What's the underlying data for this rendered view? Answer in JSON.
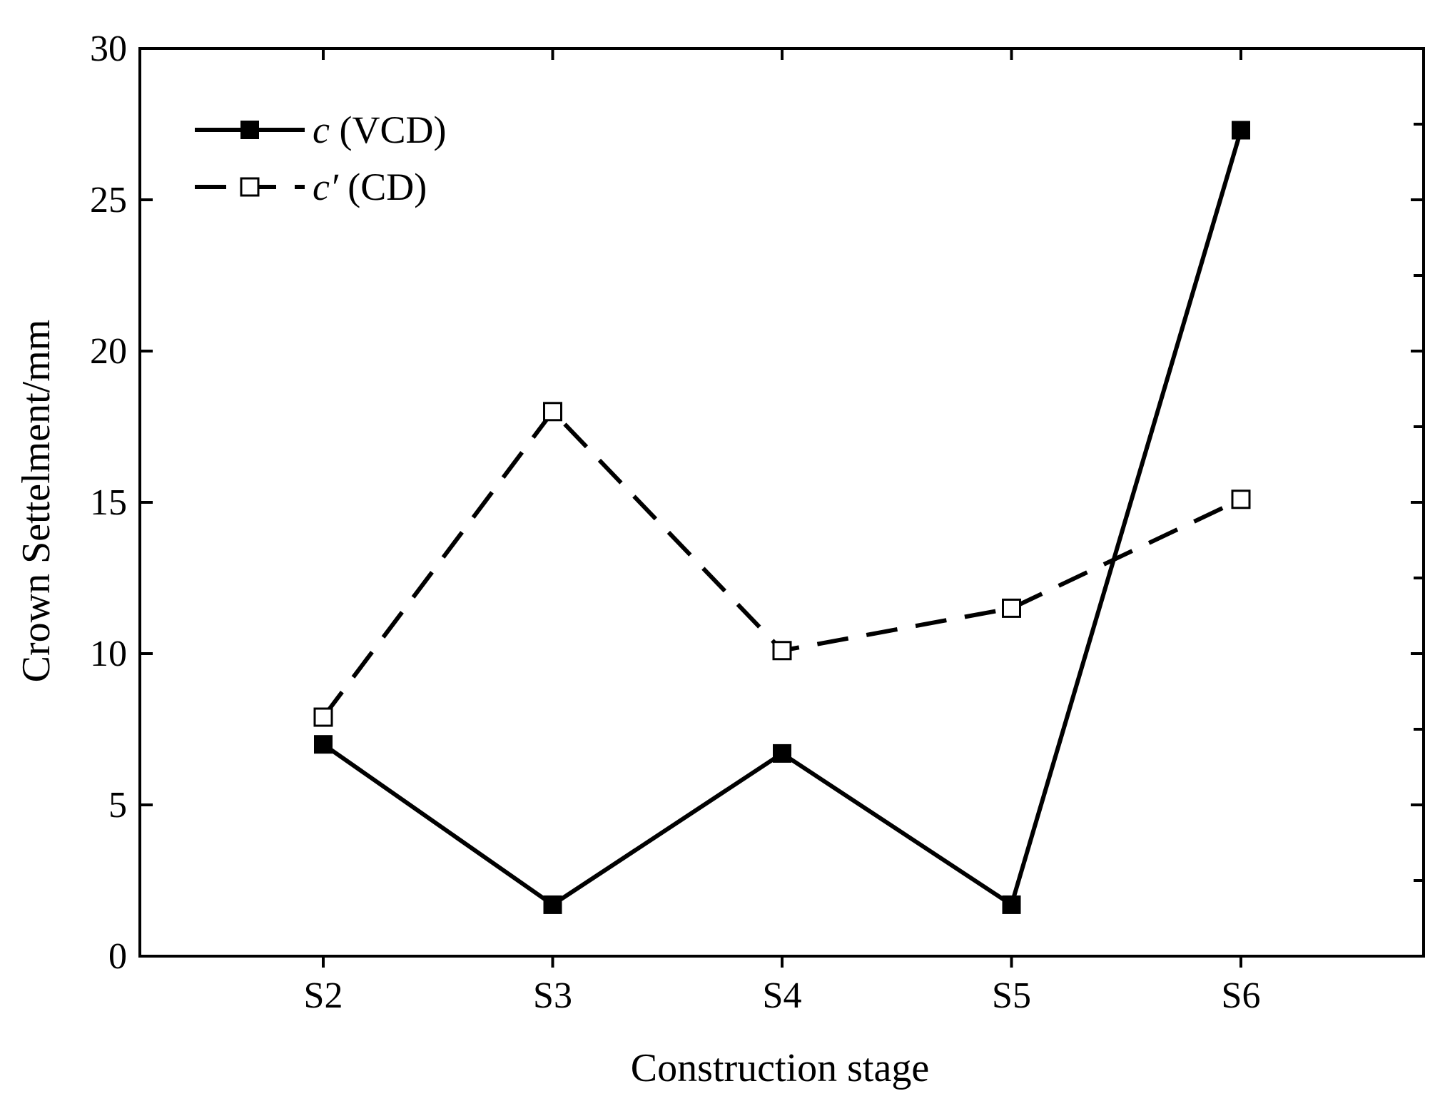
{
  "chart_data": {
    "type": "line",
    "title": "",
    "xlabel": "Construction stage",
    "ylabel": "Crown Settelment/mm",
    "categories": [
      "S2",
      "S3",
      "S4",
      "S5",
      "S6"
    ],
    "ylim": [
      0,
      30
    ],
    "yticks": [
      0,
      5,
      10,
      15,
      20,
      25,
      30
    ],
    "grid": false,
    "legend_position": "top-left",
    "series": [
      {
        "name": "c (VCD)",
        "symbol": "c",
        "label": " (VCD)",
        "values": [
          7.0,
          1.7,
          6.7,
          1.7,
          27.3
        ],
        "line_style": "solid",
        "marker": "filled-square",
        "color": "#000000"
      },
      {
        "name": "c′ (CD)",
        "symbol": "c′",
        "label": " (CD)",
        "values": [
          7.9,
          18.0,
          10.1,
          11.5,
          15.1
        ],
        "line_style": "dashed",
        "marker": "open-square",
        "color": "#000000"
      }
    ]
  }
}
